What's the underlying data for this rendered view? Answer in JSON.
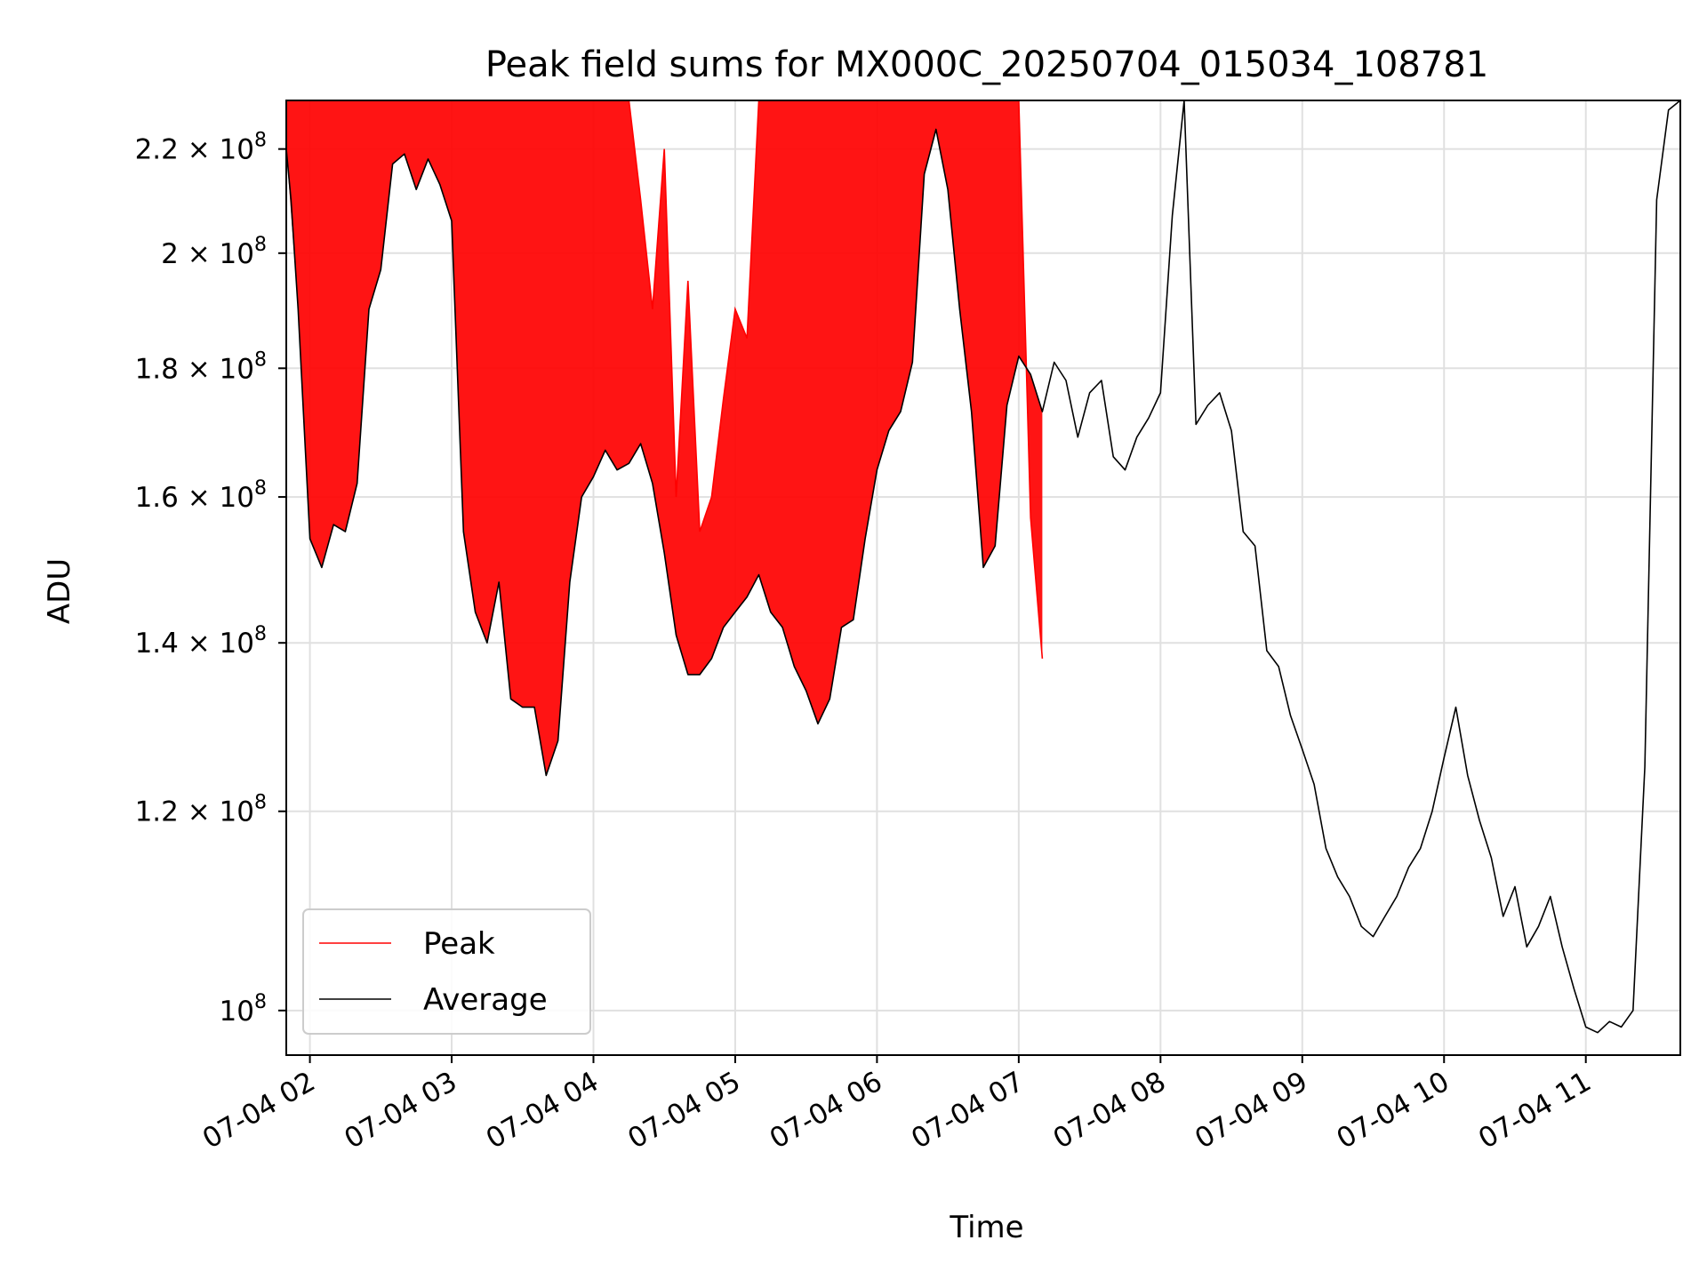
{
  "chart_data": {
    "type": "line",
    "title": "Peak field sums for MX000C_20250704_015034_108781",
    "xlabel": "Time",
    "ylabel": "ADU",
    "y_scale": "log",
    "ylim": [
      96000000.0,
      230000000.0
    ],
    "xlim": [
      "07-04 01:50",
      "07-04 11:40"
    ],
    "grid": true,
    "legend_position": "lower-left",
    "colors": {
      "Peak": "#ff0000",
      "Average": "#000000"
    },
    "x_ticks": [
      "07-04 02",
      "07-04 03",
      "07-04 04",
      "07-04 05",
      "07-04 06",
      "07-04 07",
      "07-04 08",
      "07-04 09",
      "07-04 10",
      "07-04 11"
    ],
    "y_ticks": [
      {
        "value": 100000000,
        "label": "10",
        "exp": "8"
      },
      {
        "value": 120000000,
        "label": "1.2 × 10",
        "exp": "8"
      },
      {
        "value": 140000000,
        "label": "1.4 × 10",
        "exp": "8"
      },
      {
        "value": 160000000,
        "label": "1.6 × 10",
        "exp": "8"
      },
      {
        "value": 180000000,
        "label": "1.8 × 10",
        "exp": "8"
      },
      {
        "value": 200000000,
        "label": "2 × 10",
        "exp": "8"
      },
      {
        "value": 220000000,
        "label": "2.2 × 10",
        "exp": "8"
      }
    ],
    "series": [
      {
        "name": "Average",
        "x": [
          "07-04 01:50",
          "07-04 01:52",
          "07-04 01:55",
          "07-04 02:00",
          "07-04 02:05",
          "07-04 02:10",
          "07-04 02:15",
          "07-04 02:20",
          "07-04 02:25",
          "07-04 02:30",
          "07-04 02:35",
          "07-04 02:40",
          "07-04 02:45",
          "07-04 02:50",
          "07-04 02:55",
          "07-04 03:00",
          "07-04 03:05",
          "07-04 03:10",
          "07-04 03:15",
          "07-04 03:20",
          "07-04 03:25",
          "07-04 03:30",
          "07-04 03:35",
          "07-04 03:40",
          "07-04 03:45",
          "07-04 03:50",
          "07-04 03:55",
          "07-04 04:00",
          "07-04 04:05",
          "07-04 04:10",
          "07-04 04:15",
          "07-04 04:20",
          "07-04 04:25",
          "07-04 04:30",
          "07-04 04:35",
          "07-04 04:40",
          "07-04 04:45",
          "07-04 04:50",
          "07-04 04:55",
          "07-04 05:00",
          "07-04 05:05",
          "07-04 05:10",
          "07-04 05:15",
          "07-04 05:20",
          "07-04 05:25",
          "07-04 05:30",
          "07-04 05:35",
          "07-04 05:40",
          "07-04 05:45",
          "07-04 05:50",
          "07-04 05:55",
          "07-04 06:00",
          "07-04 06:05",
          "07-04 06:10",
          "07-04 06:15",
          "07-04 06:20",
          "07-04 06:25",
          "07-04 06:30",
          "07-04 06:35",
          "07-04 06:40",
          "07-04 06:45",
          "07-04 06:50",
          "07-04 06:55",
          "07-04 07:00",
          "07-04 07:05",
          "07-04 07:10",
          "07-04 07:15",
          "07-04 07:20",
          "07-04 07:25",
          "07-04 07:30",
          "07-04 07:35",
          "07-04 07:40",
          "07-04 07:45",
          "07-04 07:50",
          "07-04 07:55",
          "07-04 08:00",
          "07-04 08:05",
          "07-04 08:10",
          "07-04 08:15",
          "07-04 08:20",
          "07-04 08:25",
          "07-04 08:30",
          "07-04 08:35",
          "07-04 08:40",
          "07-04 08:45",
          "07-04 08:50",
          "07-04 08:55",
          "07-04 09:00",
          "07-04 09:05",
          "07-04 09:10",
          "07-04 09:15",
          "07-04 09:20",
          "07-04 09:25",
          "07-04 09:30",
          "07-04 09:35",
          "07-04 09:40",
          "07-04 09:45",
          "07-04 09:50",
          "07-04 09:55",
          "07-04 10:00",
          "07-04 10:05",
          "07-04 10:10",
          "07-04 10:15",
          "07-04 10:20",
          "07-04 10:25",
          "07-04 10:30",
          "07-04 10:35",
          "07-04 10:40",
          "07-04 10:45",
          "07-04 10:50",
          "07-04 10:55",
          "07-04 11:00",
          "07-04 11:05",
          "07-04 11:10",
          "07-04 11:15",
          "07-04 11:20",
          "07-04 11:25",
          "07-04 11:30",
          "07-04 11:35",
          "07-04 11:40"
        ],
        "values": [
          220000000.0,
          210000000.0,
          190000000.0,
          154000000.0,
          150000000.0,
          156000000.0,
          155000000.0,
          162000000.0,
          190000000.0,
          197000000.0,
          217000000.0,
          219000000.0,
          212000000.0,
          218000000.0,
          213000000.0,
          206000000.0,
          155000000.0,
          144000000.0,
          140000000.0,
          148000000.0,
          133000000.0,
          132000000.0,
          132000000.0,
          124000000.0,
          128000000.0,
          148000000.0,
          160000000.0,
          163000000.0,
          167000000.0,
          164000000.0,
          165000000.0,
          168000000.0,
          162000000.0,
          152000000.0,
          141000000.0,
          136000000.0,
          136000000.0,
          138000000.0,
          142000000.0,
          144000000.0,
          146000000.0,
          149000000.0,
          144000000.0,
          142000000.0,
          137000000.0,
          134000000.0,
          130000000.0,
          133000000.0,
          142000000.0,
          143000000.0,
          154000000.0,
          164000000.0,
          170000000.0,
          173000000.0,
          181000000.0,
          215000000.0,
          224000000.0,
          212000000.0,
          190000000.0,
          173000000.0,
          150000000.0,
          153000000.0,
          174000000.0,
          182000000.0,
          179000000.0,
          173000000.0,
          181000000.0,
          178000000.0,
          169000000.0,
          176000000.0,
          178000000.0,
          166000000.0,
          164000000.0,
          169000000.0,
          172000000.0,
          176000000.0,
          207000000.0,
          230000000.0,
          171000000.0,
          174000000.0,
          176000000.0,
          170000000.0,
          155000000.0,
          153000000.0,
          139000000.0,
          137000000.0,
          131000000.0,
          127000000.0,
          123000000.0,
          116000000.0,
          113000000.0,
          111000000.0,
          108000000.0,
          107000000.0,
          109000000.0,
          111000000.0,
          114000000.0,
          116000000.0,
          120000000.0,
          126000000.0,
          132000000.0,
          124000000.0,
          119000000.0,
          115000000.0,
          109000000.0,
          112000000.0,
          106000000.0,
          108000000.0,
          111000000.0,
          106000000.0,
          102000000.0,
          98500000.0,
          98000000.0,
          99000000.0,
          98500000.0,
          100000000.0,
          125000000.0,
          210000000.0,
          228000000.0,
          230000000.0
        ]
      },
      {
        "name": "Peak",
        "x": [
          "07-04 01:50",
          "07-04 01:55",
          "07-04 02:00",
          "07-04 02:05",
          "07-04 02:10",
          "07-04 02:15",
          "07-04 02:20",
          "07-04 02:25",
          "07-04 02:30",
          "07-04 02:35",
          "07-04 02:40",
          "07-04 02:45",
          "07-04 02:50",
          "07-04 02:55",
          "07-04 03:00",
          "07-04 03:05",
          "07-04 03:10",
          "07-04 03:15",
          "07-04 03:20",
          "07-04 03:25",
          "07-04 03:30",
          "07-04 03:35",
          "07-04 03:40",
          "07-04 03:45",
          "07-04 03:50",
          "07-04 03:55",
          "07-04 04:00",
          "07-04 04:05",
          "07-04 04:10",
          "07-04 04:15",
          "07-04 04:20",
          "07-04 04:25",
          "07-04 04:30",
          "07-04 04:35",
          "07-04 04:40",
          "07-04 04:45",
          "07-04 04:50",
          "07-04 04:55",
          "07-04 05:00",
          "07-04 05:05",
          "07-04 05:10",
          "07-04 05:15",
          "07-04 05:20",
          "07-04 05:25",
          "07-04 05:30",
          "07-04 05:35",
          "07-04 05:40",
          "07-04 05:45",
          "07-04 05:50",
          "07-04 05:55",
          "07-04 06:00",
          "07-04 06:05",
          "07-04 06:10",
          "07-04 06:15",
          "07-04 06:20",
          "07-04 06:25",
          "07-04 06:30",
          "07-04 06:35",
          "07-04 06:40",
          "07-04 06:45",
          "07-04 06:50",
          "07-04 06:55",
          "07-04 07:00",
          "07-04 07:05",
          "07-04 07:10"
        ],
        "values": [
          230000000.0,
          230000000.0,
          230000000.0,
          230000000.0,
          230000000.0,
          230000000.0,
          230000000.0,
          230000000.0,
          230000000.0,
          230000000.0,
          230000000.0,
          230000000.0,
          230000000.0,
          230000000.0,
          230000000.0,
          230000000.0,
          230000000.0,
          230000000.0,
          230000000.0,
          230000000.0,
          230000000.0,
          230000000.0,
          230000000.0,
          230000000.0,
          230000000.0,
          230000000.0,
          230000000.0,
          230000000.0,
          230000000.0,
          230000000.0,
          210000000.0,
          190000000.0,
          220000000.0,
          160000000.0,
          195000000.0,
          155000000.0,
          160000000.0,
          175000000.0,
          190000000.0,
          185000000.0,
          230000000.0,
          230000000.0,
          230000000.0,
          230000000.0,
          230000000.0,
          230000000.0,
          230000000.0,
          230000000.0,
          230000000.0,
          230000000.0,
          230000000.0,
          230000000.0,
          230000000.0,
          230000000.0,
          230000000.0,
          230000000.0,
          230000000.0,
          230000000.0,
          230000000.0,
          230000000.0,
          230000000.0,
          230000000.0,
          230000000.0,
          157000000.0,
          138000000.0
        ]
      }
    ],
    "legend": [
      {
        "name": "Peak",
        "color": "#ff0000"
      },
      {
        "name": "Average",
        "color": "#000000"
      }
    ]
  }
}
